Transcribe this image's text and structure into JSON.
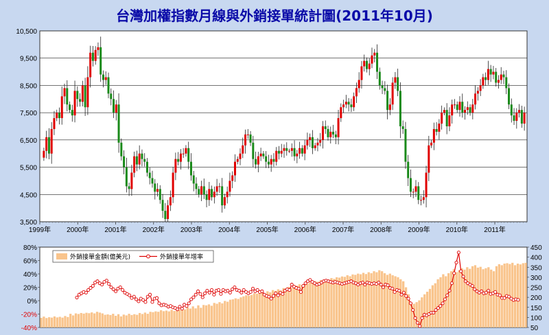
{
  "chart_data": [
    {
      "type": "candlestick",
      "title": "台灣加權指數月線與外銷接單統計圖(2011年10月)",
      "ylim": [
        3500,
        10500
      ],
      "y_ticks": [
        "10,500",
        "9,500",
        "8,500",
        "7,500",
        "6,500",
        "5,500",
        "4,500",
        "3,500"
      ],
      "x_ticks": [
        "1999年",
        "2000年",
        "2001年",
        "2002年",
        "2003年",
        "2004年",
        "2005年",
        "2006年",
        "2007年",
        "2008年",
        "2009年",
        "2010年",
        "2011年"
      ],
      "up_color": "#e00000",
      "down_color": "#1a8a1a",
      "close_series": [
        6100,
        6600,
        6000,
        6900,
        7300,
        7500,
        7300,
        8100,
        8400,
        7800,
        7600,
        7400,
        8300,
        8000,
        7900,
        8500,
        7700,
        8800,
        9700,
        9400,
        9800,
        9900,
        8900,
        8700,
        8800,
        8200,
        8000,
        7500,
        7800,
        6400,
        5900,
        5500,
        4800,
        4700,
        5300,
        5900,
        5600,
        6000,
        5800,
        5700,
        5300,
        5100,
        4900,
        4600,
        4700,
        4300,
        3900,
        3600,
        4100,
        4400,
        5300,
        5800,
        5700,
        6000,
        6000,
        6200,
        5700,
        5200,
        4900,
        4700,
        4500,
        4800,
        4500,
        4300,
        4700,
        4400,
        4600,
        4800,
        4800,
        4100,
        4400,
        4600,
        5000,
        5200,
        5700,
        5800,
        6000,
        6300,
        6700,
        6700,
        6400,
        5800,
        5600,
        5900,
        6000,
        5900,
        5700,
        5600,
        5800,
        5700,
        6100,
        6000,
        6100,
        6200,
        6100,
        6100,
        6200,
        5900,
        6000,
        6200,
        6000,
        6300,
        6500,
        6600,
        6200,
        6300,
        6400,
        6500,
        7000,
        6900,
        6600,
        6800,
        6700,
        6600,
        7300,
        7700,
        7800,
        7900,
        7800,
        7700,
        8100,
        8400,
        8700,
        9200,
        9400,
        9100,
        9300,
        9600,
        9700,
        9000,
        8500,
        8400,
        8300,
        7600,
        7800,
        8600,
        8800,
        8300,
        7000,
        6900,
        5700,
        5100,
        4600,
        4600,
        4800,
        4300,
        4300,
        4400,
        5300,
        6300,
        6400,
        6900,
        6800,
        7100,
        7500,
        7600,
        7000,
        7400,
        7800,
        7800,
        7600,
        7900,
        7500,
        7600,
        7700,
        7500,
        7800,
        8200,
        8300,
        8500,
        8800,
        8700,
        9100,
        8900,
        9000,
        8600,
        8700,
        8900,
        8800,
        8400,
        7800,
        7400,
        7200,
        7500,
        7600,
        7100,
        7500
      ]
    },
    {
      "type": "bar+line",
      "series": [
        {
          "name": "外銷接單金額(億美元)",
          "axis": "right",
          "color": "#f9c48c",
          "values": [
            98,
            104,
            97,
            101,
            99,
            105,
            100,
            103,
            99,
            107,
            102,
            118,
            110,
            120,
            117,
            122,
            119,
            123,
            121,
            125,
            120,
            128,
            124,
            120,
            113,
            115,
            112,
            118,
            108,
            116,
            105,
            114,
            110,
            118,
            112,
            116,
            113,
            122,
            117,
            124,
            118,
            128,
            126,
            130,
            128,
            136,
            131,
            134,
            130,
            138,
            132,
            140,
            138,
            146,
            140,
            150,
            144,
            155,
            145,
            160,
            148,
            162,
            160,
            165,
            158,
            172,
            168,
            176,
            170,
            182,
            178,
            188,
            190,
            195,
            192,
            200,
            205,
            210,
            208,
            212,
            220,
            218,
            222,
            225,
            218,
            230,
            225,
            236,
            232,
            240,
            234,
            246,
            245,
            252,
            248,
            260,
            258,
            265,
            262,
            270,
            268,
            275,
            272,
            280,
            278,
            286,
            282,
            290,
            288,
            296,
            292,
            300,
            298,
            304,
            302,
            310,
            305,
            314,
            312,
            318,
            315,
            322,
            316,
            325,
            320,
            330,
            325,
            335,
            330,
            320,
            312,
            318,
            310,
            305,
            300,
            290,
            280,
            250,
            215,
            175,
            168,
            176,
            185,
            200,
            215,
            228,
            242,
            260,
            270,
            290,
            300,
            315,
            305,
            320,
            330,
            340,
            325,
            335,
            345,
            338,
            350,
            342,
            355,
            360,
            348,
            352,
            340,
            345,
            350,
            338,
            330,
            355,
            365,
            360,
            368,
            370,
            366,
            372,
            360,
            368,
            364,
            370,
            372
          ]
        },
        {
          "name": "外銷接單年增率",
          "axis": "left",
          "color": "#dd0000",
          "values": [
            0.047,
            0.09,
            0.11,
            0.13,
            0.12,
            0.16,
            0.19,
            0.22,
            0.27,
            0.29,
            0.26,
            0.24,
            0.28,
            0.3,
            0.25,
            0.2,
            0.17,
            0.14,
            0.18,
            0.2,
            0.16,
            0.12,
            0.1,
            0.08,
            0.04,
            0.06,
            0.02,
            -0.01,
            0.03,
            0.01,
            -0.02,
            0.06,
            0.09,
            -0.02,
            0.03,
            0.04,
            -0.04,
            -0.07,
            -0.06,
            -0.07,
            -0.09,
            -0.08,
            -0.1,
            -0.11,
            -0.13,
            -0.09,
            -0.12,
            -0.06,
            -0.08,
            -0.04,
            0.02,
            0.05,
            0.09,
            0.14,
            0.1,
            0.05,
            0.11,
            0.15,
            0.12,
            0.16,
            0.09,
            0.15,
            0.16,
            0.1,
            0.16,
            0.14,
            0.15,
            0.12,
            0.17,
            0.2,
            0.16,
            0.15,
            0.12,
            0.16,
            0.13,
            0.11,
            0.13,
            0.18,
            0.14,
            0.16,
            0.13,
            0.14,
            0.09,
            0.07,
            0.06,
            0.03,
            0.07,
            0.11,
            0.08,
            0.12,
            0.1,
            0.15,
            0.17,
            0.16,
            0.24,
            0.21,
            0.19,
            0.18,
            0.13,
            0.22,
            0.26,
            0.29,
            0.31,
            0.28,
            0.26,
            0.24,
            0.25,
            0.27,
            0.29,
            0.3,
            0.29,
            0.28,
            0.27,
            0.28,
            0.27,
            0.26,
            0.25,
            0.26,
            0.27,
            0.28,
            0.29,
            0.27,
            0.26,
            0.24,
            0.26,
            0.27,
            0.24,
            0.27,
            0.26,
            0.25,
            0.26,
            0.25,
            0.27,
            0.24,
            0.2,
            0.24,
            0.23,
            0.19,
            0.18,
            0.13,
            0.16,
            0.15,
            0.09,
            0.12,
            0.07,
            0.03,
            -0.04,
            -0.14,
            -0.26,
            -0.33,
            -0.38,
            -0.26,
            -0.21,
            -0.22,
            -0.2,
            -0.18,
            -0.18,
            -0.14,
            -0.11,
            -0.08,
            -0.04,
            0.02,
            0.08,
            0.15,
            0.26,
            0.41,
            0.57,
            0.72,
            0.44,
            0.36,
            0.29,
            0.26,
            0.24,
            0.22,
            0.17,
            0.14,
            0.12,
            0.14,
            0.11,
            0.12,
            0.15,
            0.1,
            0.11,
            0.13,
            0.09,
            0.08,
            0.04,
            0.04,
            0.07,
            0.06,
            0.03,
            0.01,
            0.02,
            0.012
          ]
        }
      ],
      "y_left_ticks": [
        "80%",
        "60%",
        "40%",
        "20%",
        "0%",
        "-20%",
        "-40%"
      ],
      "y_left_range": [
        -0.4,
        0.8
      ],
      "y_right_ticks": [
        "450",
        "400",
        "350",
        "300",
        "250",
        "200",
        "150",
        "100",
        "50"
      ],
      "y_right_range": [
        50,
        450
      ],
      "legend_placement": "top-left"
    }
  ]
}
